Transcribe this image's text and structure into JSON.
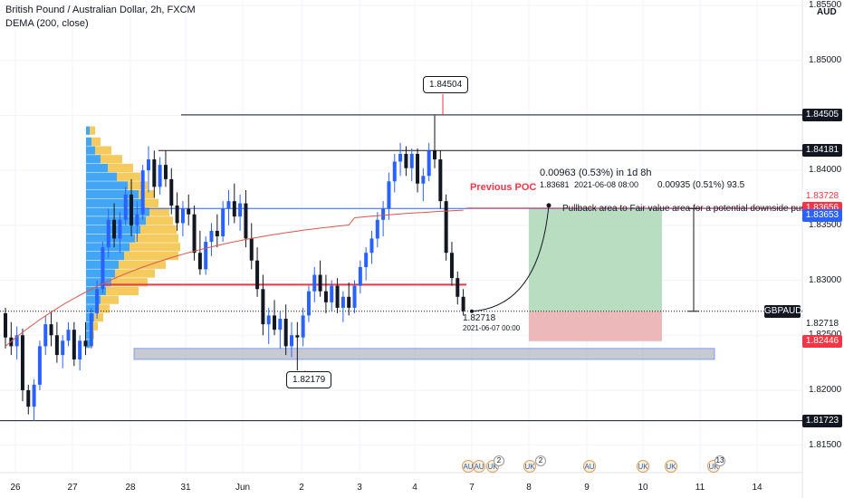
{
  "header": {
    "symbol_title": "British Pound / Australian Dollar, 2h, FXCM",
    "indicator": "DEMA (200, close)"
  },
  "axis": {
    "currency": "AUD",
    "y_min": 1.8125,
    "y_max": 1.8555,
    "tick_values": [
      "1.85500",
      "1.85000",
      "1.84500",
      "1.84000",
      "1.83500",
      "1.83000",
      "1.82500",
      "1.82000",
      "1.81500"
    ],
    "x_labels": [
      "26",
      "27",
      "28",
      "31",
      "Jun",
      "2",
      "3",
      "4",
      "7",
      "8",
      "9",
      "10",
      "11",
      "14"
    ]
  },
  "price_labels": [
    {
      "value": 1.84505,
      "text": "1.84505",
      "bg": "#131722",
      "fg": "#ffffff"
    },
    {
      "value": 1.84181,
      "text": "1.84181",
      "bg": "#131722",
      "fg": "#ffffff"
    },
    {
      "value": 1.83728,
      "text": "1.83728",
      "bg": "#ffffff",
      "fg": "#f23645"
    },
    {
      "value": 1.83656,
      "text": "1.83656",
      "bg": "#f23645",
      "fg": "#ffffff"
    },
    {
      "value": 1.83653,
      "text": "1.83653",
      "bg": "#2962ff",
      "fg": "#ffffff"
    },
    {
      "value": 1.82718,
      "text": "GBPAUD",
      "bg": "#131722",
      "fg": "#ffffff"
    },
    {
      "value": 1.82718,
      "text": "1.82718",
      "bg": "#ffffff",
      "fg": "#131722"
    },
    {
      "value": 1.82446,
      "text": "1.82446",
      "bg": "#f23645",
      "fg": "#ffffff"
    },
    {
      "value": 1.81723,
      "text": "1.81723",
      "bg": "#131722",
      "fg": "#ffffff"
    }
  ],
  "annotations": {
    "high_callout": "1.84504",
    "low_callout": "1.82179",
    "previous_poc": "Previous POC",
    "projection_main": "0.00963 (0.53%) in 1d 8h",
    "projection_sub_price": "1.83681",
    "projection_sub_date": "2021-06-08  08:00",
    "measure_text": "0.00935 (0.51%) 93.5",
    "current_price": "1.82718",
    "current_date": "2021-06-07 00:00",
    "pullback_text": "Pullback area to Fair value area for a potential downside push"
  },
  "events": {
    "count_a": "2",
    "count_b": "2",
    "count_c": "13"
  },
  "colors": {
    "bull": "#2962ff",
    "bear": "#131722",
    "dema": "#e0544b",
    "poc": "#f23645",
    "profit_zone": "#a8d5b0",
    "loss_zone": "#e9a6a9",
    "fvg_zone": "#b2b5be",
    "vp_blue": "#2196f3",
    "vp_yellow": "#f5c242"
  },
  "chart_data": {
    "type": "candlestick",
    "symbol": "GBPAUD",
    "timeframe": "2h",
    "candles": [
      [
        1.827,
        1.8275,
        1.8238,
        1.8248
      ],
      [
        1.8248,
        1.8262,
        1.8232,
        1.824
      ],
      [
        1.824,
        1.8258,
        1.8228,
        1.825
      ],
      [
        1.825,
        1.8256,
        1.819,
        1.82
      ],
      [
        1.82,
        1.8205,
        1.8178,
        1.8185
      ],
      [
        1.8185,
        1.821,
        1.8172,
        1.8205
      ],
      [
        1.8205,
        1.8245,
        1.82,
        1.824
      ],
      [
        1.824,
        1.8268,
        1.8232,
        1.826
      ],
      [
        1.826,
        1.8272,
        1.824,
        1.825
      ],
      [
        1.825,
        1.8262,
        1.8225,
        1.8232
      ],
      [
        1.8232,
        1.825,
        1.822,
        1.8245
      ],
      [
        1.8245,
        1.8262,
        1.824,
        1.8255
      ],
      [
        1.8255,
        1.8262,
        1.8222,
        1.8228
      ],
      [
        1.8228,
        1.825,
        1.8218,
        1.8245
      ],
      [
        1.8245,
        1.8262,
        1.8232,
        1.824
      ],
      [
        1.824,
        1.8275,
        1.8238,
        1.827
      ],
      [
        1.827,
        1.83,
        1.8265,
        1.8292
      ],
      [
        1.8292,
        1.8335,
        1.8288,
        1.833
      ],
      [
        1.833,
        1.8365,
        1.832,
        1.8355
      ],
      [
        1.8355,
        1.837,
        1.833,
        1.8338
      ],
      [
        1.8338,
        1.8362,
        1.8325,
        1.8355
      ],
      [
        1.8355,
        1.8385,
        1.835,
        1.8378
      ],
      [
        1.8378,
        1.8392,
        1.834,
        1.835
      ],
      [
        1.835,
        1.8372,
        1.8335,
        1.836
      ],
      [
        1.836,
        1.8405,
        1.8355,
        1.84
      ],
      [
        1.84,
        1.8422,
        1.838,
        1.841
      ],
      [
        1.841,
        1.8418,
        1.8375,
        1.8385
      ],
      [
        1.8385,
        1.8412,
        1.8378,
        1.8405
      ],
      [
        1.8405,
        1.8418,
        1.8385,
        1.8392
      ],
      [
        1.8392,
        1.8402,
        1.836,
        1.8368
      ],
      [
        1.8368,
        1.838,
        1.8345,
        1.8352
      ],
      [
        1.8352,
        1.8372,
        1.834,
        1.8365
      ],
      [
        1.8365,
        1.8378,
        1.835,
        1.836
      ],
      [
        1.836,
        1.8368,
        1.8318,
        1.8325
      ],
      [
        1.8325,
        1.8345,
        1.8305,
        1.831
      ],
      [
        1.831,
        1.834,
        1.8305,
        1.8335
      ],
      [
        1.8335,
        1.8352,
        1.8322,
        1.8345
      ],
      [
        1.8345,
        1.836,
        1.833,
        1.834
      ],
      [
        1.834,
        1.8372,
        1.8335,
        1.8365
      ],
      [
        1.8365,
        1.8382,
        1.835,
        1.8372
      ],
      [
        1.8372,
        1.8388,
        1.8352,
        1.8358
      ],
      [
        1.8358,
        1.8378,
        1.8345,
        1.837
      ],
      [
        1.837,
        1.8382,
        1.833,
        1.8338
      ],
      [
        1.8338,
        1.8352,
        1.831,
        1.8318
      ],
      [
        1.8318,
        1.833,
        1.8285,
        1.8292
      ],
      [
        1.8292,
        1.8305,
        1.825,
        1.826
      ],
      [
        1.826,
        1.8275,
        1.8242,
        1.8268
      ],
      [
        1.8268,
        1.8282,
        1.825,
        1.8255
      ],
      [
        1.8255,
        1.8272,
        1.8238,
        1.8265
      ],
      [
        1.8265,
        1.8278,
        1.8232,
        1.824
      ],
      [
        1.824,
        1.8262,
        1.823,
        1.825
      ],
      [
        1.825,
        1.8262,
        1.8218,
        1.8248
      ],
      [
        1.8248,
        1.8275,
        1.824,
        1.8268
      ],
      [
        1.8268,
        1.8295,
        1.8262,
        1.829
      ],
      [
        1.829,
        1.8312,
        1.828,
        1.8305
      ],
      [
        1.8305,
        1.8318,
        1.8285,
        1.829
      ],
      [
        1.829,
        1.8305,
        1.827,
        1.828
      ],
      [
        1.828,
        1.83,
        1.8272,
        1.8295
      ],
      [
        1.8295,
        1.8302,
        1.827,
        1.8275
      ],
      [
        1.8275,
        1.829,
        1.8262,
        1.8285
      ],
      [
        1.8285,
        1.8298,
        1.8268,
        1.8275
      ],
      [
        1.8275,
        1.83,
        1.827,
        1.8295
      ],
      [
        1.8295,
        1.8318,
        1.8288,
        1.8312
      ],
      [
        1.8312,
        1.833,
        1.83,
        1.8325
      ],
      [
        1.8325,
        1.8345,
        1.8315,
        1.8338
      ],
      [
        1.8338,
        1.8362,
        1.833,
        1.8355
      ],
      [
        1.8355,
        1.8372,
        1.834,
        1.8365
      ],
      [
        1.8365,
        1.8398,
        1.8355,
        1.839
      ],
      [
        1.839,
        1.8415,
        1.838,
        1.8408
      ],
      [
        1.8408,
        1.8425,
        1.8395,
        1.8415
      ],
      [
        1.8415,
        1.8422,
        1.8395,
        1.8402
      ],
      [
        1.8402,
        1.842,
        1.839,
        1.8415
      ],
      [
        1.8415,
        1.842,
        1.838,
        1.8388
      ],
      [
        1.8388,
        1.8402,
        1.8372,
        1.8395
      ],
      [
        1.8395,
        1.8425,
        1.839,
        1.8418
      ],
      [
        1.8418,
        1.845,
        1.8402,
        1.841
      ],
      [
        1.841,
        1.8418,
        1.8365,
        1.8372
      ],
      [
        1.8372,
        1.8378,
        1.8318,
        1.8325
      ],
      [
        1.8325,
        1.8335,
        1.8295,
        1.8302
      ],
      [
        1.8302,
        1.8308,
        1.8278,
        1.8285
      ],
      [
        1.8285,
        1.8292,
        1.8268,
        1.8272
      ]
    ]
  }
}
